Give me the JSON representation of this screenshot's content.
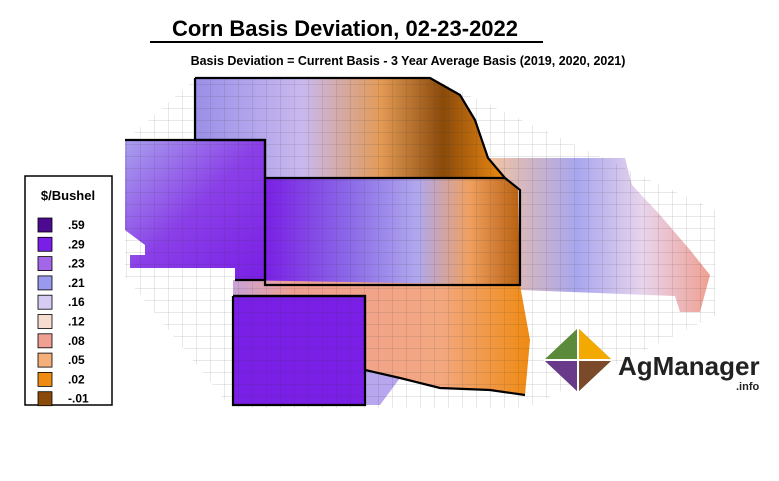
{
  "header": {
    "title": "Corn Basis Deviation, 02-23-2022",
    "subtitle": "Basis Deviation = Current Basis - 3 Year Average Basis (2019, 2020, 2021)"
  },
  "legend": {
    "title": "$/Bushel",
    "items": [
      {
        "label": ".59",
        "color": "#4b0a8f"
      },
      {
        "label": ".29",
        "color": "#7a1fe6"
      },
      {
        "label": ".23",
        "color": "#a366e8"
      },
      {
        "label": ".21",
        "color": "#9999ee"
      },
      {
        "label": ".16",
        "color": "#d6cbf3"
      },
      {
        "label": ".12",
        "color": "#f6ddd0"
      },
      {
        "label": ".08",
        "color": "#f0a092"
      },
      {
        "label": ".05",
        "color": "#f5b07a"
      },
      {
        "label": ".02",
        "color": "#ef8a12"
      },
      {
        "label": "-.01",
        "color": "#8a4a0a"
      }
    ]
  },
  "logo": {
    "name": "AgManager",
    "suffix": ".info"
  }
}
